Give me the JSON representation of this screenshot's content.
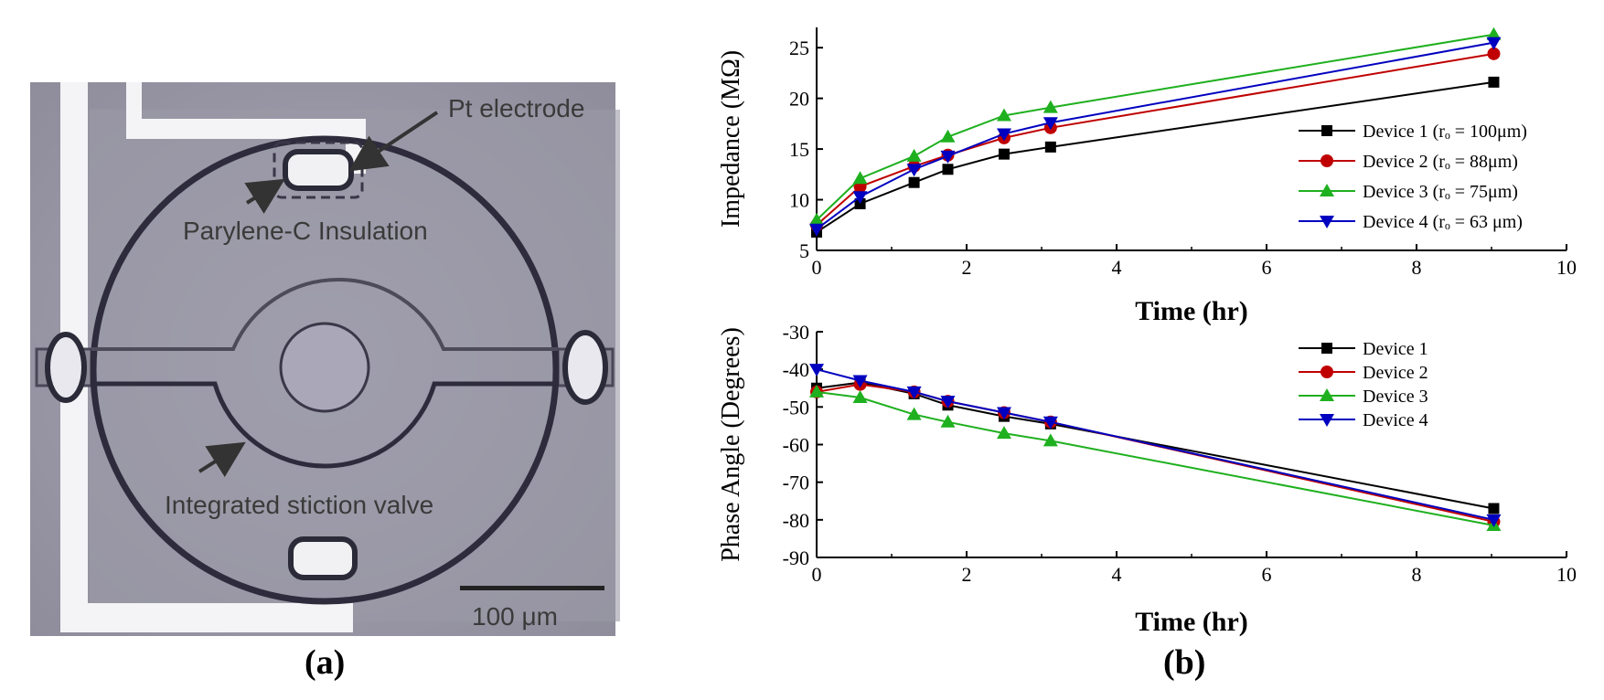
{
  "panel_a": {
    "label": "(a)",
    "annotations": {
      "pt_electrode": "Pt electrode",
      "parylene": "Parylene-C Insulation",
      "stiction": "Integrated stiction valve",
      "scale_bar": "100 μm"
    }
  },
  "panel_b_label": "(b)",
  "chart_data": [
    {
      "type": "line",
      "xlabel": "Time (hr)",
      "ylabel": "Impedance (MΩ)",
      "xlim": [
        0,
        10
      ],
      "ylim": [
        5,
        27
      ],
      "x_ticks": [
        0,
        2,
        4,
        6,
        8,
        10
      ],
      "y_ticks": [
        5,
        10,
        15,
        20,
        25
      ],
      "x": [
        0,
        0.58,
        1.3,
        1.75,
        2.5,
        3.12,
        9.03
      ],
      "series": [
        {
          "name": "Device 1 (rₒ = 100μm)",
          "color": "#000000",
          "marker": "square",
          "values": [
            6.8,
            9.6,
            11.7,
            13.0,
            14.5,
            15.2,
            21.6
          ]
        },
        {
          "name": "Device 2 (rₒ = 88μm)",
          "color": "#c00000",
          "marker": "circle",
          "values": [
            7.5,
            11.3,
            13.3,
            14.4,
            16.1,
            17.1,
            24.4
          ]
        },
        {
          "name": "Device 3 (rₒ = 75μm)",
          "color": "#1fb01f",
          "marker": "triangle-up",
          "values": [
            8.0,
            12.1,
            14.3,
            16.2,
            18.3,
            19.1,
            26.3
          ]
        },
        {
          "name": "Device 4 (rₒ = 63 μm)",
          "color": "#0000c0",
          "marker": "triangle-down",
          "values": [
            7.1,
            10.3,
            13.0,
            14.3,
            16.5,
            17.6,
            25.5
          ]
        }
      ]
    },
    {
      "type": "line",
      "xlabel": "Time (hr)",
      "ylabel": "Phase Angle (Degrees)",
      "xlim": [
        0,
        10
      ],
      "ylim": [
        -90,
        -30
      ],
      "x_ticks": [
        0,
        2,
        4,
        6,
        8,
        10
      ],
      "y_ticks": [
        -30,
        -40,
        -50,
        -60,
        -70,
        -80,
        -90
      ],
      "x": [
        0,
        0.58,
        1.3,
        1.75,
        2.5,
        3.12,
        9.03
      ],
      "series": [
        {
          "name": "Device 1",
          "color": "#000000",
          "marker": "square",
          "values": [
            -45,
            -43.5,
            -46.5,
            -49.5,
            -52.5,
            -54.5,
            -77
          ]
        },
        {
          "name": "Device 2",
          "color": "#c00000",
          "marker": "circle",
          "values": [
            -46,
            -44,
            -46,
            -48.5,
            -51.5,
            -54,
            -80.5
          ]
        },
        {
          "name": "Device 3",
          "color": "#1fb01f",
          "marker": "triangle-up",
          "values": [
            -46,
            -47.5,
            -52,
            -54,
            -57,
            -59,
            -81.5
          ]
        },
        {
          "name": "Device 4",
          "color": "#0000c0",
          "marker": "triangle-down",
          "values": [
            -40,
            -43,
            -46,
            -48.5,
            -51.5,
            -54,
            -80
          ]
        }
      ]
    }
  ]
}
